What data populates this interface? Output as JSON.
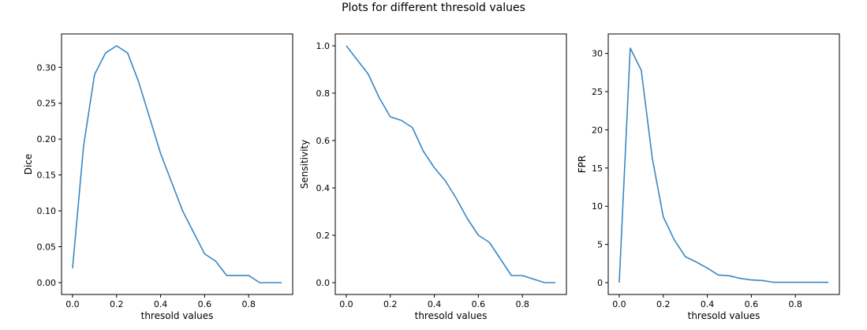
{
  "figure": {
    "suptitle": "Plots for different thresold values",
    "line_color": "#3a87c3"
  },
  "chart_data": [
    {
      "type": "line",
      "title": "",
      "xlabel": "thresold values",
      "ylabel": "Dice",
      "xlim": [
        -0.05,
        1.0
      ],
      "ylim": [
        -0.0165,
        0.3465
      ],
      "xticks": [
        0.0,
        0.2,
        0.4,
        0.6,
        0.8
      ],
      "xtick_labels": [
        "0.0",
        "0.2",
        "0.4",
        "0.6",
        "0.8"
      ],
      "yticks": [
        0.0,
        0.05,
        0.1,
        0.15,
        0.2,
        0.25,
        0.3
      ],
      "ytick_labels": [
        "0.00",
        "0.05",
        "0.10",
        "0.15",
        "0.20",
        "0.25",
        "0.30"
      ],
      "x": [
        0.0,
        0.05,
        0.1,
        0.15,
        0.2,
        0.25,
        0.3,
        0.35,
        0.4,
        0.45,
        0.5,
        0.55,
        0.6,
        0.65,
        0.7,
        0.75,
        0.8,
        0.85,
        0.9,
        0.95
      ],
      "values": [
        0.02,
        0.19,
        0.29,
        0.32,
        0.33,
        0.32,
        0.28,
        0.23,
        0.18,
        0.14,
        0.1,
        0.07,
        0.04,
        0.03,
        0.01,
        0.01,
        0.01,
        0.0,
        0.0,
        0.0
      ]
    },
    {
      "type": "line",
      "title": "",
      "xlabel": "thresold values",
      "ylabel": "Sensitivity",
      "xlim": [
        -0.05,
        1.0
      ],
      "ylim": [
        -0.05,
        1.05
      ],
      "xticks": [
        0.0,
        0.2,
        0.4,
        0.6,
        0.8
      ],
      "xtick_labels": [
        "0.0",
        "0.2",
        "0.4",
        "0.6",
        "0.8"
      ],
      "yticks": [
        0.0,
        0.2,
        0.4,
        0.6,
        0.8,
        1.0
      ],
      "ytick_labels": [
        "0.0",
        "0.2",
        "0.4",
        "0.6",
        "0.8",
        "1.0"
      ],
      "x": [
        0.0,
        0.05,
        0.1,
        0.15,
        0.2,
        0.25,
        0.3,
        0.35,
        0.4,
        0.45,
        0.5,
        0.55,
        0.6,
        0.65,
        0.7,
        0.75,
        0.8,
        0.85,
        0.9,
        0.95
      ],
      "values": [
        1.0,
        0.94,
        0.88,
        0.78,
        0.7,
        0.685,
        0.655,
        0.555,
        0.485,
        0.43,
        0.355,
        0.27,
        0.2,
        0.17,
        0.1,
        0.03,
        0.03,
        0.015,
        0.0,
        0.0
      ]
    },
    {
      "type": "line",
      "title": "",
      "xlabel": "thresold values",
      "ylabel": "FPR",
      "xlim": [
        -0.05,
        1.0
      ],
      "ylim": [
        -1.55,
        32.55
      ],
      "xticks": [
        0.0,
        0.2,
        0.4,
        0.6,
        0.8
      ],
      "xtick_labels": [
        "0.0",
        "0.2",
        "0.4",
        "0.6",
        "0.8"
      ],
      "yticks": [
        0,
        5,
        10,
        15,
        20,
        25,
        30
      ],
      "ytick_labels": [
        "0",
        "5",
        "10",
        "15",
        "20",
        "25",
        "30"
      ],
      "x": [
        0.0,
        0.05,
        0.1,
        0.15,
        0.2,
        0.25,
        0.3,
        0.35,
        0.4,
        0.45,
        0.5,
        0.55,
        0.6,
        0.65,
        0.7,
        0.75,
        0.8,
        0.85,
        0.9,
        0.95
      ],
      "values": [
        0.0,
        30.7,
        27.8,
        16.3,
        8.6,
        5.6,
        3.4,
        2.7,
        1.9,
        1.0,
        0.9,
        0.55,
        0.35,
        0.28,
        0.05,
        0.05,
        0.05,
        0.05,
        0.05,
        0.05
      ]
    }
  ]
}
